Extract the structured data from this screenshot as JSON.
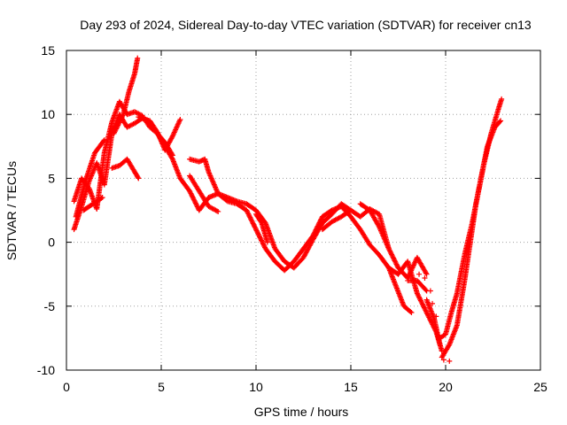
{
  "chart_data": {
    "type": "scatter",
    "title": "Day 293 of 2024, Sidereal Day-to-day VTEC variation (SDTVAR) for receiver cn13",
    "xlabel": "GPS time / hours",
    "ylabel": "SDTVAR / TECUs",
    "xlim": [
      0,
      25
    ],
    "ylim": [
      -10,
      15
    ],
    "xticks": [
      0,
      5,
      10,
      15,
      20,
      25
    ],
    "yticks": [
      -10,
      -5,
      0,
      5,
      10,
      15
    ],
    "xtick_labels": [
      "0",
      "5",
      "10",
      "15",
      "20",
      "25"
    ],
    "ytick_labels": [
      "-10",
      "-5",
      "0",
      "5",
      "10",
      "15"
    ],
    "grid": true,
    "marker": "+",
    "series": [
      {
        "name": "SDTVAR",
        "color": "#ff0000",
        "tracks": [
          {
            "x": [
              0.4,
              0.8,
              1.2,
              1.6,
              2.0,
              2.4,
              2.8,
              3.2,
              3.6,
              4.0,
              4.4,
              4.8,
              5.2,
              5.6,
              6.0
            ],
            "y": [
              1.0,
              2.8,
              4.8,
              6.2,
              4.5,
              8.5,
              10.0,
              9.0,
              9.3,
              9.7,
              9.5,
              8.6,
              7.2,
              8.3,
              9.6
            ]
          },
          {
            "x": [
              0.4,
              0.8,
              1.2,
              1.6,
              2.0,
              2.4,
              2.8,
              3.2,
              3.6,
              4.0,
              4.4,
              4.8,
              5.2,
              5.6
            ],
            "y": [
              3.2,
              5.0,
              4.2,
              2.6,
              7.0,
              9.4,
              11.0,
              10.0,
              10.2,
              9.9,
              9.0,
              8.5,
              7.8,
              6.8
            ]
          },
          {
            "x": [
              0.5,
              1.0,
              1.5,
              2.0
            ],
            "y": [
              2.0,
              4.8,
              7.0,
              8.0
            ]
          },
          {
            "x": [
              0.9,
              1.4,
              1.9
            ],
            "y": [
              2.5,
              3.0,
              3.5
            ]
          },
          {
            "x": [
              2.4,
              2.8,
              3.2,
              3.6,
              3.8
            ],
            "y": [
              5.8,
              6.0,
              6.5,
              5.5,
              5.0
            ]
          },
          {
            "x": [
              2.5,
              3.0,
              3.3,
              3.6,
              3.75
            ],
            "y": [
              8.5,
              10.0,
              11.8,
              13.2,
              14.4
            ]
          },
          {
            "x": [
              3.8,
              4.3,
              4.8,
              5.2,
              5.6,
              6.0,
              6.5,
              7.0,
              7.5,
              8.0,
              8.5,
              9.0,
              9.5,
              10.0,
              10.5,
              11.0,
              11.5,
              12.0,
              12.5,
              13.0,
              13.5,
              14.0,
              14.5,
              15.0,
              15.5,
              16.0,
              16.5,
              17.0,
              17.5,
              18.0,
              18.5,
              19.0,
              19.5,
              19.8
            ],
            "y": [
              9.8,
              9.5,
              8.5,
              7.5,
              6.5,
              5.0,
              4.0,
              2.5,
              3.5,
              3.8,
              3.2,
              3.0,
              2.5,
              1.0,
              -0.5,
              -1.5,
              -2.2,
              -1.5,
              -0.5,
              0.5,
              2.0,
              2.5,
              2.8,
              2.0,
              1.0,
              -0.2,
              -1.0,
              -2.0,
              -2.5,
              -1.5,
              -4.0,
              -5.5,
              -7.0,
              -8.5
            ]
          },
          {
            "x": [
              6.5,
              7.0,
              7.3,
              7.5,
              8.0,
              8.5,
              9.0,
              9.5,
              10.0,
              10.5,
              11.0,
              11.5,
              12.0,
              12.5,
              13.0,
              13.5,
              14.0,
              14.5,
              15.0,
              15.5,
              16.0,
              16.5,
              17.0,
              17.5,
              18.0,
              18.5,
              19.0
            ],
            "y": [
              6.5,
              6.3,
              6.5,
              5.5,
              3.8,
              3.5,
              3.2,
              3.0,
              2.5,
              1.5,
              -0.5,
              -1.5,
              -2.0,
              -1.2,
              0.2,
              1.5,
              2.2,
              3.0,
              2.5,
              2.0,
              2.6,
              2.2,
              -0.5,
              -2.0,
              -2.8,
              -1.2,
              -2.5
            ]
          },
          {
            "x": [
              6.5,
              7.0,
              7.5,
              8.0
            ],
            "y": [
              5.2,
              4.0,
              2.8,
              2.4
            ]
          },
          {
            "x": [
              10.0,
              10.3,
              10.6
            ],
            "y": [
              2.2,
              1.5,
              0.0
            ]
          },
          {
            "x": [
              13.5,
              14.0,
              14.5,
              15.0
            ],
            "y": [
              1.0,
              1.6,
              2.0,
              2.5
            ]
          },
          {
            "x": [
              15.5,
              16.0,
              16.5,
              17.0
            ],
            "y": [
              3.0,
              2.5,
              1.2,
              -0.5
            ]
          },
          {
            "x": [
              17.0,
              17.4,
              17.8,
              18.2
            ],
            "y": [
              -2.0,
              -3.5,
              -5.0,
              -5.5
            ]
          },
          {
            "x": [
              18.0,
              18.5,
              19.0
            ],
            "y": [
              -3.0,
              -3.0,
              -3.8
            ]
          },
          {
            "x": [
              19.0,
              19.4,
              19.7
            ],
            "y": [
              -4.5,
              -6.0,
              -8.0
            ]
          },
          {
            "x": [
              19.7,
              20.0,
              20.3,
              20.6,
              21.0,
              21.4,
              21.8,
              22.2,
              22.6,
              22.9
            ],
            "y": [
              -7.5,
              -7.2,
              -5.5,
              -4.0,
              -1.0,
              1.5,
              4.5,
              7.5,
              9.0,
              9.5
            ]
          },
          {
            "x": [
              19.8,
              20.2,
              20.6,
              21.0,
              21.3,
              21.6,
              22.0,
              22.4,
              22.8,
              22.95
            ],
            "y": [
              -9.0,
              -8.0,
              -6.5,
              -3.0,
              0.0,
              3.0,
              6.0,
              8.5,
              10.5,
              11.2
            ]
          }
        ],
        "outliers": [
          {
            "x": 19.2,
            "y": -3.8
          },
          {
            "x": 19.3,
            "y": -4.8
          },
          {
            "x": 19.5,
            "y": -5.8
          },
          {
            "x": 20.2,
            "y": -9.3
          },
          {
            "x": 19.9,
            "y": -9.2
          },
          {
            "x": 18.6,
            "y": -2.5
          },
          {
            "x": 18.9,
            "y": -2.8
          }
        ]
      }
    ]
  }
}
